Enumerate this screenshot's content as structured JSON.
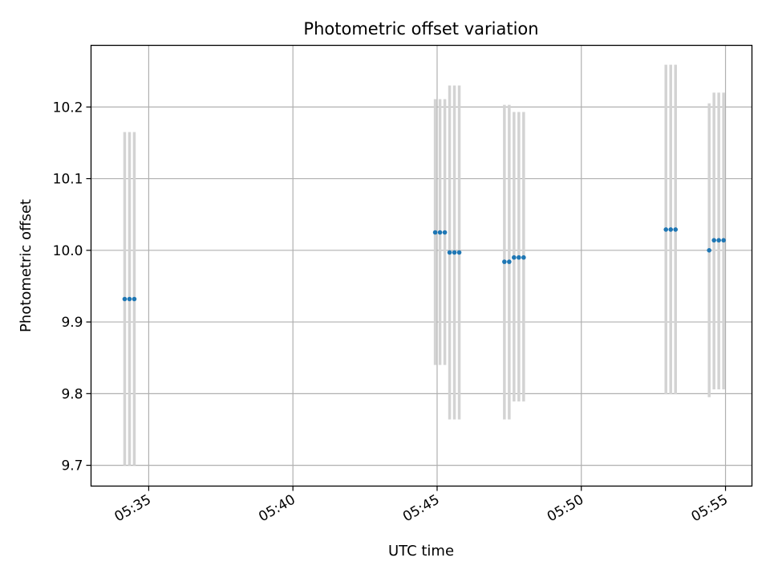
{
  "chart_data": {
    "type": "scatter",
    "title": "Photometric offset variation",
    "xlabel": "UTC time",
    "ylabel": "Photometric offset",
    "x_range": [
      "05:33:00",
      "05:55:55"
    ],
    "ylim": [
      9.671,
      10.286
    ],
    "x_ticks": [
      "05:35",
      "05:40",
      "05:45",
      "05:50",
      "05:55"
    ],
    "y_ticks": [
      "9.7",
      "9.8",
      "9.9",
      "10.0",
      "10.1",
      "10.2"
    ],
    "grid": true,
    "errorbar_color": "#d3d3d3",
    "marker_color": "#1f77b4",
    "series": [
      {
        "points": [
          {
            "t": "05:34:10",
            "y": 9.932,
            "lo": 9.7,
            "hi": 10.165
          },
          {
            "t": "05:34:20",
            "y": 9.932,
            "lo": 9.7,
            "hi": 10.165
          },
          {
            "t": "05:34:30",
            "y": 9.932,
            "lo": 9.7,
            "hi": 10.165
          },
          {
            "t": "05:44:56",
            "y": 10.025,
            "lo": 9.84,
            "hi": 10.211
          },
          {
            "t": "05:45:06",
            "y": 10.025,
            "lo": 9.84,
            "hi": 10.211
          },
          {
            "t": "05:45:16",
            "y": 10.025,
            "lo": 9.84,
            "hi": 10.211
          },
          {
            "t": "05:45:26",
            "y": 9.997,
            "lo": 9.764,
            "hi": 10.23
          },
          {
            "t": "05:45:36",
            "y": 9.997,
            "lo": 9.764,
            "hi": 10.23
          },
          {
            "t": "05:45:46",
            "y": 9.997,
            "lo": 9.764,
            "hi": 10.23
          },
          {
            "t": "05:47:20",
            "y": 9.984,
            "lo": 9.764,
            "hi": 10.203
          },
          {
            "t": "05:47:30",
            "y": 9.984,
            "lo": 9.764,
            "hi": 10.203
          },
          {
            "t": "05:47:40",
            "y": 9.99,
            "lo": 9.789,
            "hi": 10.193
          },
          {
            "t": "05:47:50",
            "y": 9.99,
            "lo": 9.789,
            "hi": 10.193
          },
          {
            "t": "05:48:00",
            "y": 9.99,
            "lo": 9.789,
            "hi": 10.193
          },
          {
            "t": "05:52:56",
            "y": 10.029,
            "lo": 9.799,
            "hi": 10.259
          },
          {
            "t": "05:53:06",
            "y": 10.029,
            "lo": 9.799,
            "hi": 10.259
          },
          {
            "t": "05:53:16",
            "y": 10.029,
            "lo": 9.799,
            "hi": 10.259
          },
          {
            "t": "05:54:26",
            "y": 10.0,
            "lo": 9.795,
            "hi": 10.205
          },
          {
            "t": "05:54:36",
            "y": 10.014,
            "lo": 9.806,
            "hi": 10.22
          },
          {
            "t": "05:54:46",
            "y": 10.014,
            "lo": 9.806,
            "hi": 10.22
          },
          {
            "t": "05:54:56",
            "y": 10.014,
            "lo": 9.806,
            "hi": 10.22
          }
        ]
      }
    ]
  }
}
